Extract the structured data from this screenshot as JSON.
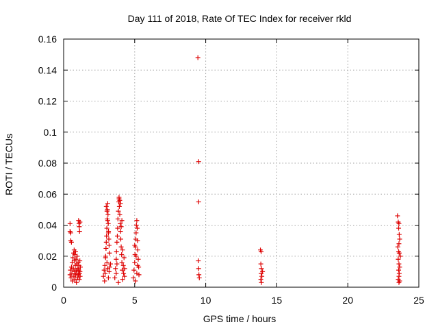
{
  "chart_data": {
    "type": "scatter",
    "title": "Day 111 of 2018, Rate Of TEC Index for receiver rkld",
    "xlabel": "GPS time / hours",
    "ylabel": "ROTI / TECUs",
    "xlim": [
      0,
      25
    ],
    "ylim": [
      0,
      0.16
    ],
    "x_ticks": [
      "0",
      "5",
      "10",
      "15",
      "20",
      "25"
    ],
    "x_tick_values": [
      0,
      5,
      10,
      15,
      20,
      25
    ],
    "y_ticks": [
      "0",
      "0.02",
      "0.04",
      "0.06",
      "0.08",
      "0.1",
      "0.12",
      "0.14",
      "0.16"
    ],
    "y_tick_values": [
      0,
      0.02,
      0.04,
      0.06,
      0.08,
      0.1,
      0.12,
      0.14,
      0.16
    ],
    "grid": true,
    "marker": "+",
    "marker_color": "#dd0000",
    "series": [
      {
        "name": "ROTI",
        "points": [
          [
            0.45,
            0.041
          ],
          [
            0.45,
            0.036
          ],
          [
            0.5,
            0.035
          ],
          [
            0.5,
            0.03
          ],
          [
            0.55,
            0.029
          ],
          [
            0.45,
            0.008
          ],
          [
            0.48,
            0.011
          ],
          [
            0.52,
            0.006
          ],
          [
            0.55,
            0.013
          ],
          [
            0.58,
            0.009
          ],
          [
            0.6,
            0.016
          ],
          [
            0.62,
            0.004
          ],
          [
            0.65,
            0.019
          ],
          [
            0.68,
            0.012
          ],
          [
            0.7,
            0.022
          ],
          [
            0.72,
            0.007
          ],
          [
            0.74,
            0.024
          ],
          [
            0.75,
            0.017
          ],
          [
            0.77,
            0.01
          ],
          [
            0.78,
            0.021
          ],
          [
            0.8,
            0.005
          ],
          [
            0.82,
            0.014
          ],
          [
            0.84,
            0.023
          ],
          [
            0.85,
            0.008
          ],
          [
            0.87,
            0.018
          ],
          [
            0.88,
            0.011
          ],
          [
            0.9,
            0.003
          ],
          [
            0.92,
            0.015
          ],
          [
            0.94,
            0.009
          ],
          [
            0.95,
            0.02
          ],
          [
            0.98,
            0.006
          ],
          [
            1.0,
            0.012
          ],
          [
            1.02,
            0.016
          ],
          [
            1.04,
            0.008
          ],
          [
            1.06,
            0.011
          ],
          [
            1.08,
            0.014
          ],
          [
            1.1,
            0.005
          ],
          [
            1.12,
            0.009
          ],
          [
            1.14,
            0.017
          ],
          [
            1.15,
            0.01
          ],
          [
            1.16,
            0.007
          ],
          [
            1.18,
            0.013
          ],
          [
            1.05,
            0.043
          ],
          [
            1.08,
            0.041
          ],
          [
            1.1,
            0.039
          ],
          [
            1.12,
            0.036
          ],
          [
            1.15,
            0.042
          ],
          [
            2.8,
            0.007
          ],
          [
            2.85,
            0.011
          ],
          [
            2.88,
            0.004
          ],
          [
            2.9,
            0.014
          ],
          [
            2.92,
            0.009
          ],
          [
            2.95,
            0.019
          ],
          [
            2.98,
            0.025
          ],
          [
            3.0,
            0.029
          ],
          [
            3.02,
            0.033
          ],
          [
            3.04,
            0.038
          ],
          [
            3.06,
            0.044
          ],
          [
            3.08,
            0.05
          ],
          [
            3.1,
            0.054
          ],
          [
            3.12,
            0.047
          ],
          [
            3.14,
            0.041
          ],
          [
            3.16,
            0.036
          ],
          [
            3.18,
            0.031
          ],
          [
            3.2,
            0.027
          ],
          [
            3.22,
            0.022
          ],
          [
            3.05,
            0.016
          ],
          [
            3.1,
            0.012
          ],
          [
            3.15,
            0.006
          ],
          [
            3.2,
            0.01
          ],
          [
            3.25,
            0.013
          ],
          [
            3.0,
            0.052
          ],
          [
            3.05,
            0.049
          ],
          [
            3.1,
            0.043
          ],
          [
            3.15,
            0.035
          ],
          [
            2.95,
            0.02
          ],
          [
            3.3,
            0.015
          ],
          [
            3.6,
            0.006
          ],
          [
            3.65,
            0.012
          ],
          [
            3.7,
            0.018
          ],
          [
            3.72,
            0.023
          ],
          [
            3.75,
            0.029
          ],
          [
            3.78,
            0.033
          ],
          [
            3.8,
            0.038
          ],
          [
            3.82,
            0.044
          ],
          [
            3.85,
            0.049
          ],
          [
            3.88,
            0.055
          ],
          [
            3.9,
            0.057
          ],
          [
            3.92,
            0.052
          ],
          [
            3.95,
            0.047
          ],
          [
            3.98,
            0.041
          ],
          [
            4.0,
            0.036
          ],
          [
            4.02,
            0.031
          ],
          [
            4.05,
            0.026
          ],
          [
            4.08,
            0.021
          ],
          [
            4.1,
            0.016
          ],
          [
            4.12,
            0.011
          ],
          [
            4.15,
            0.005
          ],
          [
            3.9,
            0.058
          ],
          [
            3.95,
            0.056
          ],
          [
            4.0,
            0.054
          ],
          [
            4.05,
            0.039
          ],
          [
            4.1,
            0.043
          ],
          [
            4.15,
            0.024
          ],
          [
            4.2,
            0.014
          ],
          [
            4.22,
            0.009
          ],
          [
            4.25,
            0.019
          ],
          [
            4.28,
            0.007
          ],
          [
            4.3,
            0.012
          ],
          [
            3.85,
            0.003
          ],
          [
            3.7,
            0.009
          ],
          [
            3.75,
            0.015
          ],
          [
            4.9,
            0.006
          ],
          [
            4.95,
            0.011
          ],
          [
            5.0,
            0.016
          ],
          [
            5.02,
            0.021
          ],
          [
            5.05,
            0.026
          ],
          [
            5.08,
            0.031
          ],
          [
            5.1,
            0.035
          ],
          [
            5.12,
            0.04
          ],
          [
            5.15,
            0.043
          ],
          [
            5.18,
            0.038
          ],
          [
            5.2,
            0.03
          ],
          [
            5.22,
            0.024
          ],
          [
            5.25,
            0.018
          ],
          [
            5.28,
            0.013
          ],
          [
            5.3,
            0.008
          ],
          [
            5.05,
            0.004
          ],
          [
            5.15,
            0.009
          ],
          [
            5.2,
            0.014
          ],
          [
            5.1,
            0.02
          ],
          [
            5.0,
            0.027
          ],
          [
            9.45,
            0.148
          ],
          [
            9.5,
            0.081
          ],
          [
            9.5,
            0.055
          ],
          [
            9.48,
            0.017
          ],
          [
            9.5,
            0.012
          ],
          [
            9.52,
            0.008
          ],
          [
            9.55,
            0.006
          ],
          [
            13.85,
            0.024
          ],
          [
            13.9,
            0.023
          ],
          [
            13.88,
            0.015
          ],
          [
            13.92,
            0.012
          ],
          [
            13.9,
            0.009
          ],
          [
            13.95,
            0.007
          ],
          [
            13.88,
            0.005
          ],
          [
            13.92,
            0.003
          ],
          [
            14.0,
            0.01
          ],
          [
            23.5,
            0.046
          ],
          [
            23.55,
            0.042
          ],
          [
            23.6,
            0.041
          ],
          [
            23.58,
            0.038
          ],
          [
            23.62,
            0.034
          ],
          [
            23.65,
            0.031
          ],
          [
            23.6,
            0.028
          ],
          [
            23.58,
            0.023
          ],
          [
            23.62,
            0.022
          ],
          [
            23.55,
            0.018
          ],
          [
            23.6,
            0.015
          ],
          [
            23.65,
            0.013
          ],
          [
            23.58,
            0.011
          ],
          [
            23.62,
            0.009
          ],
          [
            23.6,
            0.007
          ],
          [
            23.55,
            0.005
          ],
          [
            23.65,
            0.004
          ],
          [
            23.6,
            0.003
          ],
          [
            23.7,
            0.02
          ],
          [
            23.52,
            0.026
          ]
        ]
      }
    ]
  }
}
